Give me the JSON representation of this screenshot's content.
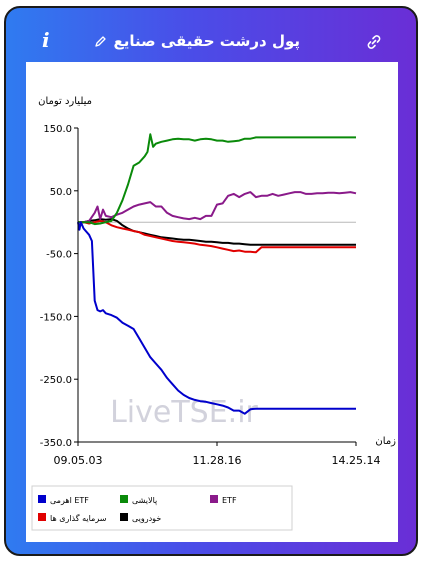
{
  "header": {
    "title": "پول درشت حقیقی صنایع",
    "info_label": "i"
  },
  "chart_data": {
    "type": "line",
    "title": "",
    "ylabel": "میلیارد تومان",
    "xlabel": "زمان",
    "ylim": [
      -350,
      150
    ],
    "yticks": [
      "150.0",
      "50.0",
      "-50.0",
      "-150.0",
      "-250.0",
      "-350.0"
    ],
    "xticks": [
      "09.05.03",
      "11.28.16",
      "14.25.14"
    ],
    "grid": false,
    "legend_position": "bottom",
    "watermark": "LiveTSE.ir",
    "series": [
      {
        "name": "اهرمی ETF",
        "color": "#0000cc",
        "x": [
          0,
          0.5,
          1,
          1.5,
          2,
          3,
          4,
          5,
          6,
          7,
          8,
          9,
          10,
          12,
          14,
          16,
          18,
          20,
          22,
          24,
          26,
          28,
          30,
          32,
          34,
          36,
          38,
          40,
          42,
          44,
          46,
          48,
          50,
          52,
          54,
          56,
          58,
          60,
          62,
          64,
          66,
          68,
          70,
          72,
          74,
          76,
          78,
          80,
          82,
          84,
          86,
          88,
          90,
          92,
          94,
          96,
          98,
          100
        ],
        "values": [
          0,
          -12,
          0,
          -5,
          -10,
          -15,
          -20,
          -30,
          -125,
          -140,
          -142,
          -140,
          -145,
          -148,
          -152,
          -160,
          -165,
          -170,
          -185,
          -200,
          -215,
          -225,
          -235,
          -248,
          -258,
          -268,
          -275,
          -280,
          -283,
          -285,
          -286,
          -288,
          -290,
          -292,
          -295,
          -300,
          -300,
          -305,
          -298,
          -297,
          -297,
          -297,
          -297,
          -297,
          -297,
          -297,
          -297,
          -297,
          -297,
          -297,
          -297,
          -297,
          -297,
          -297,
          -297,
          -297,
          -297,
          -297
        ]
      },
      {
        "name": "پالایشی",
        "color": "#0a8a0a",
        "x": [
          0,
          2,
          4,
          6,
          8,
          10,
          12,
          14,
          16,
          18,
          20,
          22,
          24,
          25,
          26,
          27,
          28,
          30,
          32,
          34,
          36,
          38,
          40,
          42,
          44,
          46,
          48,
          50,
          52,
          54,
          56,
          58,
          60,
          62,
          64,
          66,
          68,
          70,
          72,
          74,
          76,
          78,
          80,
          82,
          84,
          86,
          88,
          90,
          92,
          94,
          96,
          98,
          100
        ],
        "values": [
          0,
          0,
          0,
          -3,
          -2,
          0,
          2,
          15,
          35,
          60,
          90,
          95,
          105,
          112,
          140,
          120,
          125,
          128,
          130,
          132,
          133,
          132,
          132,
          130,
          132,
          133,
          132,
          130,
          130,
          128,
          129,
          130,
          133,
          133,
          135,
          135,
          135,
          135,
          135,
          135,
          135,
          135,
          135,
          135,
          135,
          135,
          135,
          135,
          135,
          135,
          135,
          135,
          135
        ]
      },
      {
        "name": "ETF",
        "color": "#8a1a8a",
        "x": [
          0,
          2,
          4,
          6,
          7,
          8,
          9,
          10,
          12,
          14,
          16,
          18,
          20,
          22,
          24,
          26,
          28,
          30,
          32,
          34,
          36,
          38,
          40,
          42,
          44,
          46,
          48,
          50,
          52,
          54,
          56,
          58,
          60,
          62,
          64,
          66,
          68,
          70,
          72,
          74,
          76,
          78,
          80,
          82,
          84,
          86,
          88,
          90,
          92,
          94,
          96,
          98,
          100
        ],
        "values": [
          0,
          0,
          2,
          15,
          25,
          5,
          20,
          10,
          8,
          12,
          15,
          20,
          25,
          28,
          30,
          32,
          25,
          25,
          15,
          10,
          8,
          6,
          5,
          7,
          5,
          10,
          10,
          28,
          30,
          42,
          45,
          40,
          45,
          48,
          40,
          42,
          42,
          45,
          42,
          44,
          46,
          48,
          48,
          45,
          45,
          46,
          46,
          47,
          47,
          46,
          47,
          48,
          46
        ]
      },
      {
        "name": "سرمایه گذاری ها",
        "color": "#e00000",
        "x": [
          0,
          2,
          4,
          6,
          8,
          10,
          12,
          14,
          16,
          18,
          20,
          22,
          24,
          26,
          28,
          30,
          32,
          34,
          36,
          38,
          40,
          42,
          44,
          46,
          48,
          50,
          52,
          54,
          56,
          58,
          60,
          62,
          64,
          66,
          68,
          70,
          72,
          74,
          76,
          78,
          80,
          82,
          84,
          86,
          88,
          90,
          92,
          94,
          96,
          98,
          100
        ],
        "values": [
          0,
          0,
          -2,
          0,
          2,
          0,
          -5,
          -8,
          -10,
          -12,
          -14,
          -16,
          -20,
          -22,
          -24,
          -26,
          -28,
          -30,
          -31,
          -32,
          -33,
          -34,
          -36,
          -37,
          -38,
          -40,
          -42,
          -44,
          -46,
          -45,
          -47,
          -47,
          -48,
          -40,
          -40,
          -40,
          -40,
          -40,
          -40,
          -40,
          -40,
          -40,
          -40,
          -40,
          -40,
          -40,
          -40,
          -40,
          -40,
          -40,
          -40
        ]
      },
      {
        "name": "خودرویی",
        "color": "#000000",
        "x": [
          0,
          2,
          4,
          6,
          8,
          10,
          12,
          14,
          16,
          18,
          20,
          22,
          24,
          26,
          28,
          30,
          32,
          34,
          36,
          38,
          40,
          42,
          44,
          46,
          48,
          50,
          52,
          54,
          56,
          58,
          60,
          62,
          64,
          66,
          68,
          70,
          72,
          74,
          76,
          78,
          80,
          82,
          84,
          86,
          88,
          90,
          92,
          94,
          96,
          98,
          100
        ],
        "values": [
          0,
          0,
          2,
          3,
          5,
          4,
          5,
          2,
          -5,
          -10,
          -14,
          -16,
          -18,
          -20,
          -22,
          -24,
          -25,
          -26,
          -27,
          -28,
          -28,
          -29,
          -30,
          -31,
          -31,
          -32,
          -33,
          -33,
          -34,
          -34,
          -35,
          -36,
          -36,
          -36,
          -36,
          -36,
          -36,
          -36,
          -36,
          -36,
          -36,
          -36,
          -36,
          -36,
          -36,
          -36,
          -36,
          -36,
          -36,
          -36,
          -36
        ]
      }
    ],
    "reference_line": {
      "value": 0,
      "color": "#b8b8b8"
    }
  },
  "legend_rows": [
    [
      "اهرمی ETF",
      "پالایشی",
      "ETF"
    ],
    [
      "سرمایه گذاری ها",
      "خودرویی"
    ]
  ]
}
